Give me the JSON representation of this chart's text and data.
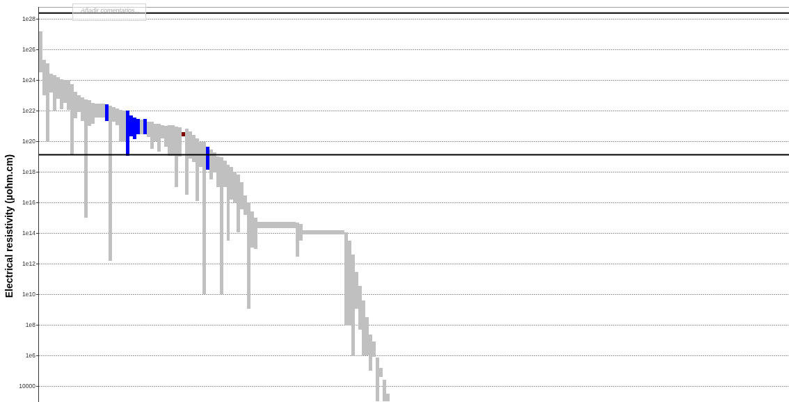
{
  "chart_data": {
    "type": "bar",
    "ylabel": "Electrical resistivity (µohm.cm)",
    "annotations": [
      "Añadir comentarios..."
    ],
    "categories": [
      null,
      null,
      null,
      null,
      null,
      null,
      null,
      null,
      null,
      null,
      null,
      null,
      null,
      null,
      null,
      null,
      null,
      null,
      null,
      null,
      null,
      null,
      null,
      null,
      null,
      null,
      null,
      null,
      null,
      null,
      null,
      null,
      null,
      null,
      null,
      null,
      null,
      null,
      null,
      null,
      null,
      null,
      null,
      null,
      null,
      null,
      null,
      null,
      null,
      null,
      null,
      null,
      null,
      null,
      null,
      null,
      null,
      null,
      null,
      null,
      null,
      null,
      null,
      null,
      null,
      null,
      null,
      null,
      null,
      null,
      null,
      null,
      null,
      null,
      null,
      null,
      null,
      null,
      null,
      null,
      null,
      null,
      null,
      null,
      null,
      null,
      null,
      null,
      null,
      null,
      null,
      null,
      null,
      null,
      null,
      null,
      null,
      null,
      null,
      null,
      null,
      null,
      null,
      null,
      null,
      null,
      null,
      null,
      null,
      null,
      null,
      null,
      null,
      null,
      null,
      null,
      null,
      null,
      null,
      null,
      null,
      null,
      null,
      null,
      null,
      null,
      null,
      null,
      null,
      null,
      null,
      null,
      null,
      null,
      null,
      null,
      null,
      null,
      null,
      null,
      null,
      null,
      null,
      null,
      null,
      null,
      null,
      null,
      null,
      null,
      null,
      null,
      null,
      null,
      null,
      null,
      null,
      null,
      null,
      null,
      null,
      null,
      null,
      null,
      null,
      null,
      null,
      null,
      null,
      null,
      null,
      null,
      null,
      null,
      null,
      null,
      null,
      null,
      null,
      null,
      null,
      null,
      null,
      null,
      null,
      null,
      null,
      null,
      null,
      null,
      null,
      null,
      null,
      null,
      null,
      null,
      null,
      null,
      null,
      null,
      null,
      null,
      null,
      null,
      null,
      null,
      null,
      null,
      null,
      null,
      null,
      null,
      null,
      null,
      null,
      null
    ],
    "values": [
      1.6e+27,
      2e+25,
      1.3e+25,
      2.3e+24,
      2e+24,
      1.5e+24,
      1.1e+24,
      9.7e+23,
      9.9e+23,
      5.6e+23,
      1.6e+23,
      9.2e+22,
      6.9e+22,
      5.6e+22,
      4.9e+22,
      3e+22,
      2.5e+22,
      2.5e+22,
      2.5e+22,
      2.3e+22,
      2e+22,
      1.6e+22,
      1.3e+22,
      1.1e+22,
      9.9e+21,
      1e+22,
      4.8e+21,
      3.4e+21,
      2.5e+21,
      2.2e+21,
      2.5e+21,
      1.8e+21,
      1.8e+21,
      1.3e+21,
      1.3e+21,
      9.4e+20,
      9.6e+20,
      1.1e+21,
      1.1e+21,
      8.9e+20,
      7.8e+20,
      2e+20,
      6.3e+20,
      4.4e+20,
      2.5e+20,
      1.6e+20,
      8.7e+19,
      8.9e+19,
      4.4e+19,
      2.8e+19,
      1.9e+19,
      9.9e+18,
      8.9e+18,
      5.5e+18,
      2.8e+18,
      2e+18,
      9.9e+17,
      6.3e+17,
      2e+17,
      2.6e+16,
      1e+16,
      2500000000000000.0,
      990000000000000.0,
      360000000000000.0,
      360000000000000.0,
      360000000000000.0,
      360000000000000.0,
      360000000000000.0,
      360000000000000.0,
      360000000000000.0,
      360000000000000.0,
      360000000000000.0,
      360000000000000.0,
      360000000000000.0,
      500000000000000.0,
      370000000000000.0,
      81000000000000.0,
      81000000000000.0,
      81000000000000.0,
      81000000000000.0,
      81000000000000.0,
      81000000000000.0,
      81000000000000.0,
      81000000000000.0,
      81000000000000.0,
      81000000000000.0,
      81000000000000.0,
      81000000000000.0,
      110000000000000.0,
      32000000000000.0,
      4000000000000.0,
      280000000000.0,
      35000000000.0,
      4000000000.0,
      320000000.0,
      22000000.0,
      7100000.0,
      710000.0,
      120000.0,
      24000.0,
      2200,
      null,
      null,
      null,
      null,
      null,
      null,
      null,
      null,
      null,
      null,
      null,
      null,
      null,
      null,
      null,
      null,
      null,
      null,
      null,
      null,
      null,
      null,
      null,
      null,
      null,
      null,
      null,
      null,
      null,
      null,
      null,
      null,
      null,
      null,
      null,
      null,
      null,
      null,
      null,
      null,
      null,
      null,
      null,
      null,
      null,
      null,
      null,
      null,
      null,
      null,
      null,
      null,
      null,
      null,
      null,
      null,
      null,
      null,
      null,
      null,
      null,
      null,
      null,
      null,
      null,
      null,
      null,
      null,
      null,
      null,
      null,
      null,
      null,
      null,
      null,
      null,
      null,
      null,
      null,
      null,
      null,
      null,
      null,
      null,
      null,
      null,
      null,
      null,
      null,
      null,
      null,
      null,
      null,
      null,
      null,
      null,
      null,
      null,
      null,
      null,
      null,
      null,
      null,
      null,
      null,
      null,
      null,
      null,
      null,
      null,
      null,
      null,
      null,
      null,
      null
    ],
    "base": [
      3.2e+24,
      1e+23,
      1e+20,
      1.6e+23,
      1e+22,
      6.3e+22,
      1.3e+22,
      3.2e+22,
      1.1e+22,
      1.3e+19,
      3.2e+21,
      7.9e+21,
      2e+21,
      1000000000000000.0,
      1e+21,
      1.4e+21,
      3.5e+21,
      3.5e+21,
      3.5e+21,
      2e+21,
      1600000000000.0,
      1.8e+21,
      1.1e+21,
      1e+20,
      1e+20,
      1.1e+19,
      2e+20,
      1.4e+20,
      2.8e+20,
      2.8e+20,
      2.8e+20,
      1.8e+20,
      3.2e+19,
      1e+20,
      2.2e+19,
      1.6e+20,
      4.5e+19,
      1.1e+19,
      1.1e+19,
      1e+17,
      1e+19,
      2e+20,
      3.2e+16,
      7.1e+18,
      4.5e+18,
      1.3e+16,
      2e+18,
      10000000000.0,
      1.4e+18,
      3.2e+17,
      8.9e+17,
      1e+17,
      10000000000.0,
      1e+17,
      32000000000000.0,
      1.6e+16,
      1e+16,
      110000000000000.0,
      3500000000000000.0,
      1600000000000000.0,
      1100000000.0,
      11000000000000.0,
      8900000000000.0,
      200000000000000.0,
      200000000000000.0,
      200000000000000.0,
      200000000000000.0,
      200000000000000.0,
      200000000000000.0,
      200000000000000.0,
      200000000000000.0,
      200000000000000.0,
      200000000000000.0,
      200000000000000.0,
      2800000000000.0,
      32000000000000.0,
      79000000000000.0,
      79000000000000.0,
      79000000000000.0,
      79000000000000.0,
      79000000000000.0,
      79000000000000.0,
      79000000000000.0,
      79000000000000.0,
      79000000000000.0,
      79000000000000.0,
      79000000000000.0,
      79000000000000.0,
      89000000.0,
      89000000.0,
      890000.0,
      1100000000.0,
      50000000.0,
      1000000.0,
      1000000.0,
      100000.0,
      790000.0,
      1000,
      40000.0,
      1000,
      1000,
      null,
      null,
      null,
      null,
      null,
      null,
      null,
      null,
      null,
      null,
      null,
      null,
      null,
      null,
      null,
      null,
      null,
      null,
      null,
      null,
      null,
      null,
      null,
      null,
      null,
      null,
      null,
      null,
      null,
      null,
      null,
      null,
      null,
      null,
      null,
      null,
      null,
      null,
      null,
      null,
      null,
      null,
      null,
      null,
      null,
      null,
      null,
      null,
      null,
      null,
      null,
      null,
      null,
      null,
      null,
      null,
      null,
      null,
      null,
      null,
      null,
      null,
      null,
      null,
      null,
      null,
      null,
      null,
      null,
      null,
      null,
      null,
      null,
      null,
      null,
      null,
      null,
      null,
      null,
      null,
      null,
      null,
      null,
      null,
      null,
      null,
      null,
      null,
      null,
      null,
      null,
      null,
      null,
      null,
      null,
      null,
      null,
      null,
      null,
      null,
      null,
      null,
      null,
      null,
      null,
      null,
      null,
      null,
      null,
      null,
      null,
      null,
      null,
      null,
      null
    ],
    "colors": [
      "#c0c0c0",
      "#c0c0c0",
      "#c0c0c0",
      "#c0c0c0",
      "#c0c0c0",
      "#c0c0c0",
      "#c0c0c0",
      "#c0c0c0",
      "#c0c0c0",
      "#c0c0c0",
      "#c0c0c0",
      "#c0c0c0",
      "#c0c0c0",
      "#c0c0c0",
      "#c0c0c0",
      "#c0c0c0",
      "#c0c0c0",
      "#c0c0c0",
      "#c0c0c0",
      "#0000ff",
      "#c0c0c0",
      "#c0c0c0",
      "#c0c0c0",
      "#c0c0c0",
      "#c0c0c0",
      "#0000ff",
      "#0000ff",
      "#0000ff",
      "#0000ff",
      "#c0c0c0",
      "#0000ff",
      "#c0c0c0",
      "#c0c0c0",
      "#c0c0c0",
      "#c0c0c0",
      "#c0c0c0",
      "#c0c0c0",
      "#c0c0c0",
      "#c0c0c0",
      "#c0c0c0",
      "#c0c0c0",
      "#800000",
      "#c0c0c0",
      "#c0c0c0",
      "#c0c0c0",
      "#c0c0c0",
      "#c0c0c0",
      "#c0c0c0",
      "#0000ff",
      "#c0c0c0",
      "#c0c0c0",
      "#c0c0c0",
      "#c0c0c0",
      "#c0c0c0",
      "#c0c0c0",
      "#c0c0c0",
      "#c0c0c0",
      "#c0c0c0",
      "#c0c0c0",
      "#c0c0c0",
      "#c0c0c0",
      "#c0c0c0",
      "#c0c0c0",
      "#c0c0c0",
      "#c0c0c0",
      "#c0c0c0",
      "#c0c0c0",
      "#c0c0c0",
      "#c0c0c0",
      "#c0c0c0",
      "#c0c0c0",
      "#c0c0c0",
      "#c0c0c0",
      "#c0c0c0",
      "#c0c0c0",
      "#c0c0c0",
      "#c0c0c0",
      "#c0c0c0",
      "#c0c0c0",
      "#c0c0c0",
      "#c0c0c0",
      "#c0c0c0",
      "#c0c0c0",
      "#c0c0c0",
      "#c0c0c0",
      "#c0c0c0",
      "#c0c0c0",
      "#c0c0c0",
      "#c0c0c0",
      "#c0c0c0",
      "#c0c0c0",
      "#c0c0c0",
      "#c0c0c0",
      "#c0c0c0",
      "#c0c0c0",
      "#c0c0c0",
      "#c0c0c0",
      "#c0c0c0",
      "#c0c0c0",
      "#c0c0c0",
      "#c0c0c0",
      null,
      null,
      null,
      null,
      null,
      null,
      null,
      null,
      null,
      null,
      null,
      null,
      null,
      null,
      null,
      null,
      null,
      null,
      null,
      null,
      null,
      null,
      null,
      null,
      null,
      null,
      null,
      null,
      null,
      null,
      null,
      null,
      null,
      null,
      null,
      null,
      null,
      null,
      null,
      null,
      null,
      null,
      null,
      null,
      null,
      null,
      null,
      null,
      null,
      null,
      null,
      null,
      null,
      null,
      null,
      null,
      null,
      null,
      null,
      null,
      null,
      null,
      null,
      null,
      null,
      null,
      null,
      null,
      null,
      null,
      null,
      null,
      null,
      null,
      null,
      null,
      null,
      null,
      null,
      null,
      null,
      null,
      null,
      null,
      null,
      null,
      null,
      null,
      null,
      null,
      null,
      null,
      null,
      null,
      null,
      null,
      null,
      null,
      null,
      null,
      null,
      null,
      null,
      null,
      null,
      null,
      null,
      null,
      null,
      null,
      null,
      null,
      null,
      null,
      null
    ],
    "log": true,
    "ylim": [
      1000,
      6e+28
    ],
    "yticks": [
      {
        "value": 1e+28,
        "label": "1e28"
      },
      {
        "value": 1e+26,
        "label": "1e26"
      },
      {
        "value": 1e+24,
        "label": "1e24"
      },
      {
        "value": 1e+22,
        "label": "1e22"
      },
      {
        "value": 1e+20,
        "label": "1e20"
      },
      {
        "value": 1e+18,
        "label": "1e18"
      },
      {
        "value": 1e+16,
        "label": "1e16"
      },
      {
        "value": 100000000000000.0,
        "label": "1e14"
      },
      {
        "value": 1000000000000.0,
        "label": "1e12"
      },
      {
        "value": 10000000000.0,
        "label": "1e10"
      },
      {
        "value": 100000000.0,
        "label": "1e8"
      },
      {
        "value": 1000000.0,
        "label": "1e6"
      },
      10000
    ],
    "grid": "y",
    "tick_labels": "y",
    "ref_lines": [
      {
        "axis": "y",
        "value": 2.4e+28,
        "color": "#000000"
      },
      {
        "axis": "y",
        "value": 1.3e+19,
        "color": "#000000"
      }
    ]
  }
}
